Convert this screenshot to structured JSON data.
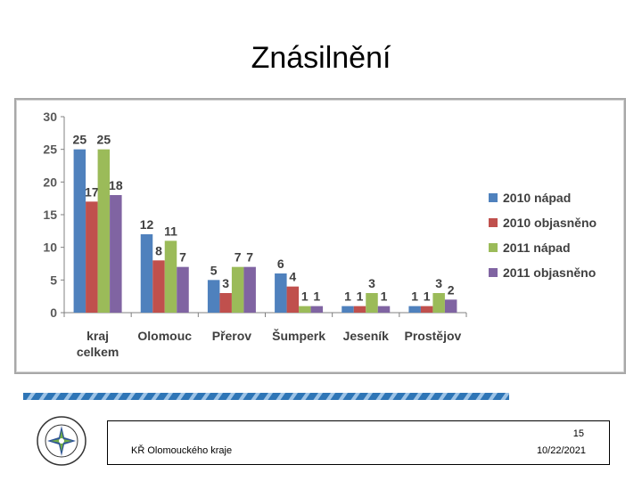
{
  "slide": {
    "title": "Znásilnění",
    "page_number": "15",
    "organization": "KŘ Olomouckého kraje",
    "date": "10/22/2021",
    "emblem_text": "POLICIE ČESKÉ REPUBLIKY"
  },
  "chart_data": {
    "type": "bar",
    "title": "",
    "xlabel": "",
    "ylabel": "",
    "ylim": [
      0,
      30
    ],
    "yticks": [
      0,
      5,
      10,
      15,
      20,
      25,
      30
    ],
    "grid": false,
    "legend": "right",
    "categories": [
      [
        "kraj",
        "celkem"
      ],
      [
        "Olomouc"
      ],
      [
        "Přerov"
      ],
      [
        "Šumperk"
      ],
      [
        "Jeseník"
      ],
      [
        "Prostějov"
      ]
    ],
    "series": [
      {
        "name": "2010 nápad",
        "color": "#4f81bd",
        "values": [
          25,
          12,
          5,
          6,
          1,
          1
        ]
      },
      {
        "name": "2010 objasněno",
        "color": "#c0504d",
        "values": [
          17,
          8,
          3,
          4,
          1,
          1
        ]
      },
      {
        "name": "2011 nápad",
        "color": "#9bbb59",
        "values": [
          25,
          11,
          7,
          1,
          3,
          3
        ]
      },
      {
        "name": "2011 objasněno",
        "color": "#8064a2",
        "values": [
          18,
          7,
          7,
          1,
          1,
          2
        ]
      }
    ]
  }
}
